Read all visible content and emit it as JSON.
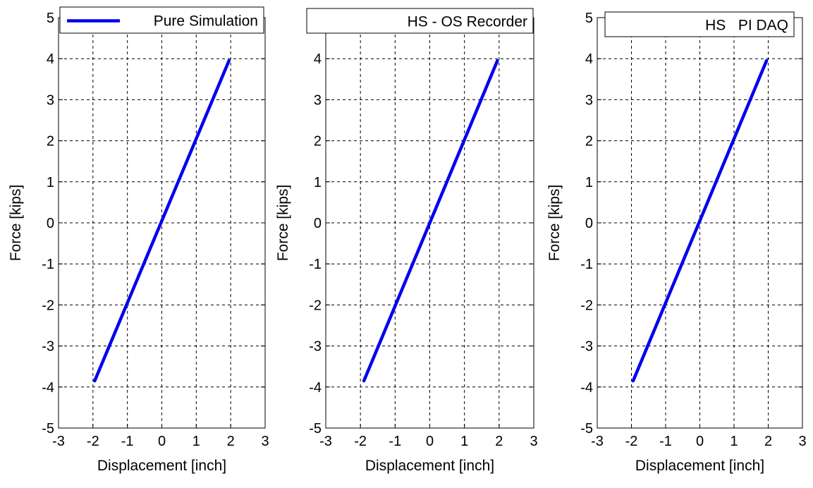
{
  "figure": {
    "background": "#ffffff",
    "line_color": "#0000ee",
    "grid_color": "#000000"
  },
  "chart_data": [
    {
      "type": "line",
      "xlabel": "Displacement [inch]",
      "ylabel": "Force [kips]",
      "xlim": [
        -3,
        3
      ],
      "ylim": [
        -5,
        5
      ],
      "xticks": [
        "-3",
        "-2",
        "-1",
        "0",
        "1",
        "2",
        "3"
      ],
      "yticks": [
        "-5",
        "-4",
        "-3",
        "-2",
        "-1",
        "0",
        "1",
        "2",
        "3",
        "4",
        "5"
      ],
      "grid": true,
      "legend_position": "top-left",
      "series": [
        {
          "name": "Pure Simulation",
          "show_legend_line": true,
          "color": "#0000ee",
          "x": [
            -1.95,
            1.95
          ],
          "y": [
            -3.85,
            3.95
          ]
        }
      ]
    },
    {
      "type": "line",
      "xlabel": "Displacement [inch]",
      "ylabel": "Force [kips]",
      "xlim": [
        -3,
        3
      ],
      "ylim": [
        -5,
        5
      ],
      "xticks": [
        "-3",
        "-2",
        "-1",
        "0",
        "1",
        "2",
        "3"
      ],
      "yticks": [
        "-5",
        "-4",
        "-3",
        "-2",
        "-1",
        "0",
        "1",
        "2",
        "3",
        "4",
        "5"
      ],
      "grid": true,
      "legend_position": "top",
      "series": [
        {
          "name": "HS - OS Recorder",
          "show_legend_line": false,
          "color": "#0000ee",
          "x": [
            -1.9,
            1.95
          ],
          "y": [
            -3.85,
            3.95
          ]
        }
      ]
    },
    {
      "type": "line",
      "xlabel": "Displacement [inch]",
      "ylabel": "Force [kips]",
      "xlim": [
        -3,
        3
      ],
      "ylim": [
        -5,
        5
      ],
      "xticks": [
        "-3",
        "-2",
        "-1",
        "0",
        "1",
        "2",
        "3"
      ],
      "yticks": [
        "-5",
        "-4",
        "-3",
        "-2",
        "-1",
        "0",
        "1",
        "2",
        "3",
        "4",
        "5"
      ],
      "grid": true,
      "legend_position": "top",
      "series": [
        {
          "name": "HS   PI DAQ",
          "show_legend_line": false,
          "color": "#0000ee",
          "x": [
            -1.95,
            1.95
          ],
          "y": [
            -3.85,
            3.95
          ]
        }
      ]
    }
  ]
}
